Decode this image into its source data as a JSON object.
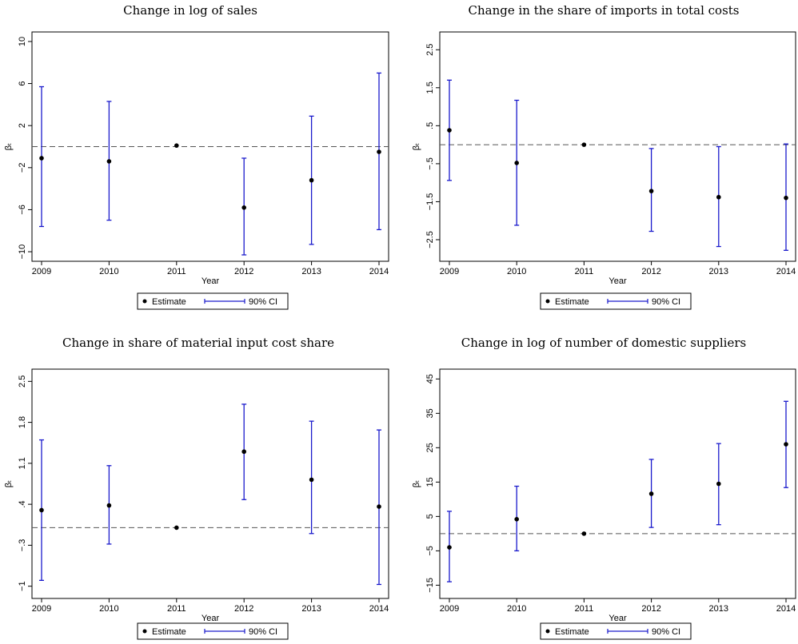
{
  "chart_data": [
    {
      "type": "scatter",
      "title": "Change in log of sales",
      "xlabel": "Year",
      "ylabel": "βₜ",
      "x": [
        2009,
        2010,
        2011,
        2012,
        2013,
        2014
      ],
      "y_ticks": [
        10,
        6,
        2,
        -2,
        -6,
        -10
      ],
      "y_tick_labels": [
        "10",
        "6",
        "2",
        "−2",
        "−6",
        "−10"
      ],
      "ylim": [
        -10.3,
        10.3
      ],
      "reference_line": 0,
      "series": [
        {
          "name": "Estimate",
          "values": [
            -1.1,
            -1.4,
            0.1,
            -5.8,
            -3.2,
            -0.5
          ]
        },
        {
          "name": "90% CI",
          "lower": [
            -7.6,
            -7.0,
            0.1,
            -10.3,
            -9.3,
            -7.9
          ],
          "upper": [
            5.7,
            4.3,
            0.1,
            -1.1,
            2.9,
            7.0
          ]
        }
      ],
      "legend": {
        "position": "bottom",
        "entries": [
          "Estimate",
          "90% CI"
        ]
      },
      "grid": false
    },
    {
      "type": "scatter",
      "title": "Change in the share of imports in total costs",
      "xlabel": "Year",
      "ylabel": "βₜ",
      "x": [
        2009,
        2010,
        2011,
        2012,
        2013,
        2014
      ],
      "y_ticks": [
        2.5,
        1.5,
        0.5,
        -0.5,
        -1.5,
        -2.5
      ],
      "y_tick_labels": [
        "2.5",
        "1.5",
        ".5",
        "−.5",
        "−1.5",
        "−2.5"
      ],
      "ylim": [
        -2.9,
        2.8
      ],
      "reference_line": 0,
      "series": [
        {
          "name": "Estimate",
          "values": [
            0.38,
            -0.48,
            0.0,
            -1.22,
            -1.38,
            -1.4
          ]
        },
        {
          "name": "90% CI",
          "lower": [
            -0.94,
            -2.12,
            0.0,
            -2.28,
            -2.68,
            -2.78
          ],
          "upper": [
            1.7,
            1.17,
            0.0,
            -0.1,
            -0.05,
            0.02
          ]
        }
      ],
      "legend": {
        "position": "bottom",
        "entries": [
          "Estimate",
          "90% CI"
        ]
      },
      "grid": false
    },
    {
      "type": "scatter",
      "title": "Change in share of material input cost share",
      "xlabel": "Year",
      "ylabel": "βₜ",
      "x": [
        2009,
        2010,
        2011,
        2012,
        2013,
        2014
      ],
      "y_ticks": [
        2.5,
        1.8,
        1.1,
        0.4,
        -0.3,
        -1
      ],
      "y_tick_labels": [
        "2.5",
        "1.8",
        "1.1",
        ".4",
        "−.3",
        "−1"
      ],
      "ylim": [
        -1.1,
        2.6
      ],
      "reference_line": 0,
      "series": [
        {
          "name": "Estimate",
          "values": [
            0.3,
            0.38,
            0.0,
            1.3,
            0.82,
            0.36
          ]
        },
        {
          "name": "90% CI",
          "lower": [
            -0.9,
            -0.28,
            0.0,
            0.48,
            -0.1,
            -0.97
          ],
          "upper": [
            1.5,
            1.06,
            0.0,
            2.11,
            1.82,
            1.67
          ]
        }
      ],
      "legend": {
        "position": "bottom",
        "entries": [
          "Estimate",
          "90% CI"
        ]
      },
      "grid": false
    },
    {
      "type": "scatter",
      "title": "Change in log of number of domestic suppliers",
      "xlabel": "Year",
      "ylabel": "βₜ",
      "x": [
        2009,
        2010,
        2011,
        2012,
        2013,
        2014
      ],
      "y_ticks": [
        45,
        35,
        25,
        15,
        5,
        -5,
        -15
      ],
      "y_tick_labels": [
        "45",
        "35",
        "25",
        "15",
        "5",
        "−5",
        "−15"
      ],
      "ylim": [
        -17,
        46
      ],
      "reference_line": 0,
      "series": [
        {
          "name": "Estimate",
          "values": [
            -4.0,
            4.2,
            0.0,
            11.6,
            14.5,
            26.0
          ]
        },
        {
          "name": "90% CI",
          "lower": [
            -14.0,
            -5.0,
            0.0,
            1.8,
            2.6,
            13.4
          ],
          "upper": [
            6.5,
            13.8,
            0.0,
            21.6,
            26.2,
            38.5
          ]
        }
      ],
      "legend": {
        "position": "bottom",
        "entries": [
          "Estimate",
          "90% CI"
        ]
      },
      "grid": false
    }
  ],
  "colors": {
    "estimate": "#000000",
    "ci": "#1a1acc",
    "reference_line": "#555555"
  }
}
